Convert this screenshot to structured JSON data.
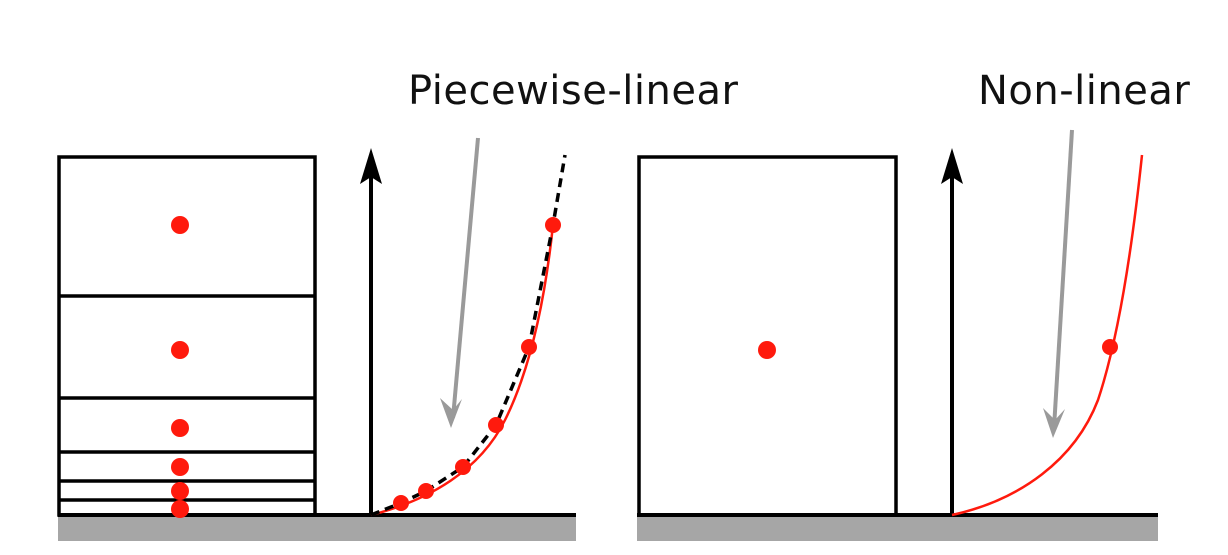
{
  "left_panel": {
    "label": "Piecewise-linear"
  },
  "right_panel": {
    "label": "Non-linear"
  },
  "colors": {
    "ink": "#000000",
    "accent": "#ff1a0d",
    "pointer": "#9a9a9a",
    "ground": "#a6a6a6"
  }
}
